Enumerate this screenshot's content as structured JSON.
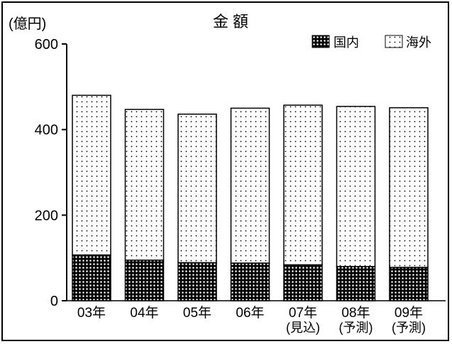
{
  "chart_data": {
    "type": "bar",
    "stacked": true,
    "title": "金 額",
    "ylabel": "(億円)",
    "ylim": [
      0,
      600
    ],
    "yticks": [
      0,
      200,
      400,
      600
    ],
    "categories": [
      {
        "label": "03年",
        "note": ""
      },
      {
        "label": "04年",
        "note": ""
      },
      {
        "label": "05年",
        "note": ""
      },
      {
        "label": "06年",
        "note": ""
      },
      {
        "label": "07年",
        "note": "(見込)"
      },
      {
        "label": "08年",
        "note": "(予測)"
      },
      {
        "label": "09年",
        "note": "(予測)"
      }
    ],
    "series": [
      {
        "name": "国内",
        "pattern": "dense-dots",
        "values": [
          107,
          95,
          89,
          88,
          84,
          80,
          78
        ]
      },
      {
        "name": "海外",
        "pattern": "sparse-dots",
        "values": [
          373,
          352,
          347,
          362,
          373,
          374,
          373
        ]
      }
    ],
    "legend_position": "top-right",
    "grid": false
  }
}
